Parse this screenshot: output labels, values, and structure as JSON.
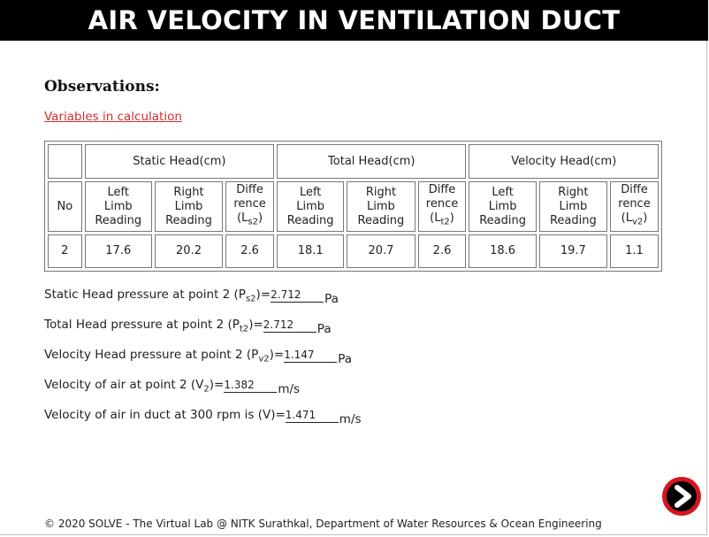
{
  "title": "AIR VELOCITY IN VENTILATION DUCT",
  "observations_heading": "Observations:",
  "variables_link": "Variables in calculation",
  "table": {
    "group_headers": [
      "Static Head(cm)",
      "Total Head(cm)",
      "Velocity Head(cm)"
    ],
    "col_no": "No",
    "sub_left": [
      "Left",
      "Limb",
      "Reading"
    ],
    "sub_right": [
      "Right",
      "Limb",
      "Reading"
    ],
    "sub_diff": [
      "Diffe",
      "rence"
    ],
    "diff_labels": [
      {
        "open": "(L",
        "sub": "s2",
        "close": ")"
      },
      {
        "open": "(L",
        "sub": "t2",
        "close": ")"
      },
      {
        "open": "(L",
        "sub": "v2",
        "close": ")"
      }
    ],
    "row": {
      "no": "2",
      "static": [
        "17.6",
        "20.2",
        "2.6"
      ],
      "total": [
        "18.1",
        "20.7",
        "2.6"
      ],
      "velocity": [
        "18.6",
        "19.7",
        "1.1"
      ]
    }
  },
  "results": [
    {
      "pre": "Static Head pressure at point 2 (P",
      "sub": "s2",
      "post": ")=",
      "value": "2.712",
      "unit": "Pa"
    },
    {
      "pre": "Total Head pressure at point 2 (P",
      "sub": "t2",
      "post": ")=",
      "value": "2.712",
      "unit": "Pa"
    },
    {
      "pre": "Velocity Head pressure at point 2 (P",
      "sub": "v2",
      "post": ")=",
      "value": "1.147",
      "unit": "Pa"
    },
    {
      "pre": "Velocity of air at point 2 (V",
      "sub": "2",
      "post": ")=",
      "value": "1.382",
      "unit": "m/s"
    },
    {
      "pre": "Velocity of air in duct at 300 rpm is (V)=",
      "sub": "",
      "post": "",
      "value": "1.471",
      "unit": "m/s"
    }
  ],
  "next_icon": "arrow-right-icon",
  "colors": {
    "accent": "#d5161e",
    "link": "#d32f2f",
    "title_bg": "#000000"
  },
  "footer": "© 2020 SOLVE - The Virtual Lab @ NITK Surathkal, Department of Water Resources & Ocean Engineering"
}
